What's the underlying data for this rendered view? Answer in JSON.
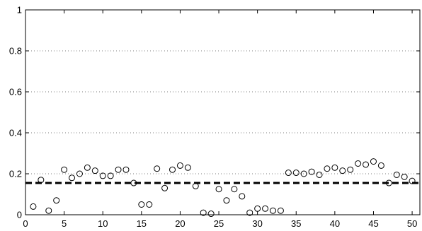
{
  "chart_data": {
    "type": "scatter",
    "title": "",
    "xlabel": "",
    "ylabel": "",
    "xlim": [
      0,
      51
    ],
    "ylim": [
      0,
      1
    ],
    "x_ticks": [
      0,
      5,
      10,
      15,
      20,
      25,
      30,
      35,
      40,
      45,
      50
    ],
    "y_ticks": [
      0,
      0.2,
      0.4,
      0.6,
      0.8,
      1
    ],
    "x_tick_labels": [
      "0",
      "5",
      "10",
      "15",
      "20",
      "25",
      "30",
      "35",
      "40",
      "45",
      "50"
    ],
    "y_tick_labels": [
      "0",
      "0.2",
      "0.4",
      "0.6",
      "0.8",
      "1"
    ],
    "grid": "horizontal dotted",
    "marker": "open circle",
    "reference_line": {
      "y": 0.155,
      "style": "dashed"
    },
    "series": [
      {
        "x": [
          1,
          2,
          3,
          4,
          5,
          6,
          7,
          8,
          9,
          10,
          11,
          12,
          13,
          14,
          15,
          16,
          17,
          18,
          19,
          20,
          21,
          22,
          23,
          24,
          25,
          26,
          27,
          28,
          29,
          30,
          31,
          32,
          33,
          34,
          35,
          36,
          37,
          38,
          39,
          40,
          41,
          42,
          43,
          44,
          45,
          46,
          47,
          48,
          49,
          50
        ],
        "y": [
          0.04,
          0.17,
          0.02,
          0.07,
          0.22,
          0.18,
          0.2,
          0.23,
          0.215,
          0.19,
          0.19,
          0.22,
          0.22,
          0.155,
          0.05,
          0.05,
          0.225,
          0.13,
          0.22,
          0.24,
          0.23,
          0.14,
          0.01,
          0.005,
          0.125,
          0.07,
          0.125,
          0.09,
          0.01,
          0.03,
          0.03,
          0.02,
          0.02,
          0.205,
          0.205,
          0.2,
          0.21,
          0.195,
          0.225,
          0.23,
          0.215,
          0.22,
          0.25,
          0.245,
          0.26,
          0.24,
          0.155,
          0.195,
          0.185,
          0.165
        ]
      }
    ]
  }
}
